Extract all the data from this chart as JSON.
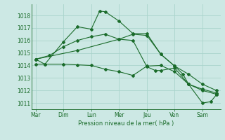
{
  "background_color": "#cce8e4",
  "grid_color": "#aad4cc",
  "line_color": "#1a6b2a",
  "xlabel": "Pression niveau de la mer( hPa )",
  "ylim": [
    1010.5,
    1018.9
  ],
  "yticks": [
    1011,
    1012,
    1013,
    1014,
    1015,
    1016,
    1017,
    1018
  ],
  "x_labels": [
    "Mar",
    "Dim",
    "Lun",
    "Mer",
    "Jeu",
    "Ven",
    "Sam"
  ],
  "x_positions": [
    0,
    1,
    2,
    3,
    4,
    5,
    6
  ],
  "xlim": [
    -0.15,
    6.65
  ],
  "series1_x": [
    0.0,
    0.33,
    1.0,
    1.5,
    2.0,
    2.3,
    2.5,
    3.0,
    3.5,
    4.0,
    4.5,
    5.0,
    5.5,
    6.0,
    6.5
  ],
  "series1_y": [
    1014.5,
    1014.1,
    1015.9,
    1017.1,
    1016.9,
    1018.35,
    1018.3,
    1017.55,
    1016.55,
    1016.55,
    1014.9,
    1013.95,
    1013.3,
    1012.5,
    1012.0
  ],
  "series2_x": [
    0.0,
    0.33,
    1.0,
    1.5,
    2.0,
    2.5,
    3.0,
    3.5,
    4.0,
    4.5,
    5.0,
    5.5,
    6.0,
    6.5
  ],
  "series2_y": [
    1014.1,
    1014.1,
    1014.1,
    1014.05,
    1014.0,
    1013.7,
    1013.5,
    1013.2,
    1013.95,
    1014.0,
    1013.5,
    1012.5,
    1012.0,
    1011.7
  ],
  "series3_x": [
    0.0,
    1.5,
    3.0,
    3.5,
    4.0,
    4.5,
    5.0,
    5.3,
    5.5,
    6.0,
    6.5
  ],
  "series3_y": [
    1014.5,
    1015.2,
    1016.1,
    1016.5,
    1016.4,
    1014.9,
    1013.95,
    1013.3,
    1012.5,
    1012.1,
    1011.8
  ],
  "series4_x": [
    0.0,
    0.5,
    1.0,
    1.5,
    2.0,
    2.5,
    3.0,
    3.5,
    4.0,
    4.3,
    4.5,
    5.0,
    5.5,
    6.0,
    6.3,
    6.5
  ],
  "series4_y": [
    1014.5,
    1014.8,
    1015.5,
    1016.0,
    1016.3,
    1016.5,
    1016.1,
    1016.0,
    1013.9,
    1013.6,
    1013.6,
    1013.8,
    1012.5,
    1011.0,
    1011.1,
    1011.65
  ]
}
